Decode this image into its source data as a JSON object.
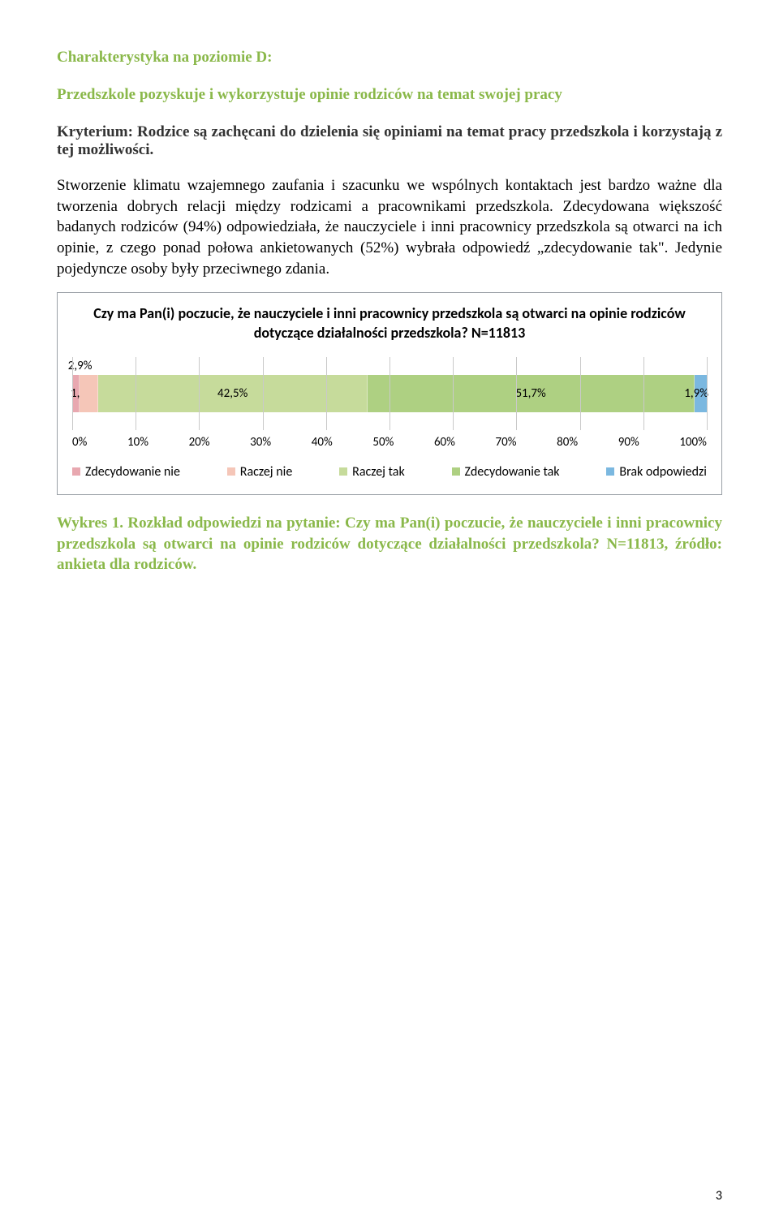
{
  "heading_d": "Charakterystyka na poziomie D:",
  "subheading": "Przedszkole pozyskuje i wykorzystuje opinie rodziców na temat swojej pracy",
  "criterion": "Kryterium: Rodzice są zachęcani do dzielenia się opiniami na temat pracy przedszkola i korzystają z tej możliwości.",
  "body": "Stworzenie klimatu wzajemnego zaufania i szacunku we wspólnych kontaktach jest bardzo ważne dla tworzenia dobrych relacji między rodzicami a pracownikami przedszkola. Zdecydowana większość badanych rodziców (94%) odpowiedziała, że nauczyciele i inni pracownicy przedszkola są otwarci na ich opinie, z czego ponad połowa ankietowanych (52%) wybrała odpowiedź „zdecydowanie tak\". Jedynie pojedyncze osoby były przeciwnego zdania.",
  "chart": {
    "title": "Czy ma Pan(i) poczucie, że nauczyciele i inni pracownicy przedszkola są otwarci na opinie rodziców dotyczące działalności przedszkola? N=11813",
    "segments": [
      {
        "label": "1,0%",
        "value": 1.0,
        "color": "#e8a8b0"
      },
      {
        "label": "2,9%",
        "value": 2.9,
        "color": "#f5c6b8"
      },
      {
        "label": "42,5%",
        "value": 42.5,
        "color": "#c6db9b"
      },
      {
        "label": "51,7%",
        "value": 51.7,
        "color": "#aed082"
      },
      {
        "label": "1,9%",
        "value": 1.9,
        "color": "#7bb8e0"
      }
    ],
    "axis_ticks": [
      "0%",
      "10%",
      "20%",
      "30%",
      "40%",
      "50%",
      "60%",
      "70%",
      "80%",
      "90%",
      "100%"
    ],
    "legend": [
      {
        "swatch": "#e8a8b0",
        "label": "Zdecydowanie nie"
      },
      {
        "swatch": "#f5c6b8",
        "label": "Raczej nie"
      },
      {
        "swatch": "#c6db9b",
        "label": "Raczej tak"
      },
      {
        "swatch": "#aed082",
        "label": "Zdecydowanie tak"
      },
      {
        "swatch": "#7bb8e0",
        "label": "Brak odpowiedzi"
      }
    ],
    "grid_color": "#c9c9c9",
    "box_border": "#9aa0a6"
  },
  "caption": "Wykres 1. Rozkład odpowiedzi na pytanie: Czy ma Pan(i) poczucie, że nauczyciele i inni pracownicy przedszkola są otwarci na opinie rodziców dotyczące działalności przedszkola? N=11813, źródło: ankieta dla rodziców.",
  "page_number": "3"
}
